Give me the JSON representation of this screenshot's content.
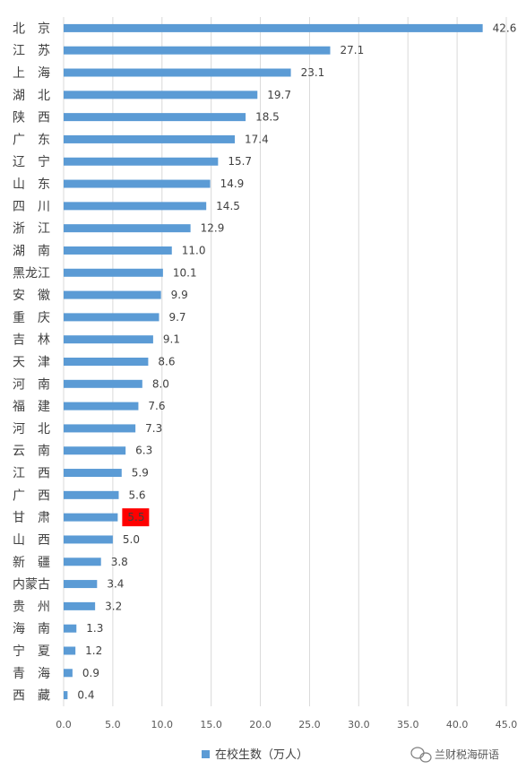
{
  "chart_data": {
    "type": "bar",
    "orientation": "horizontal",
    "categories": [
      "北　京",
      "江　苏",
      "上　海",
      "湖　北",
      "陕　西",
      "广　东",
      "辽　宁",
      "山　东",
      "四　川",
      "浙　江",
      "湖　南",
      "黑龙江",
      "安　徽",
      "重　庆",
      "吉　林",
      "天　津",
      "河　南",
      "福　建",
      "河　北",
      "云　南",
      "江　西",
      "广　西",
      "甘　肃",
      "山　西",
      "新　疆",
      "内蒙古",
      "贵　州",
      "海　南",
      "宁　夏",
      "青　海",
      "西　藏"
    ],
    "value_labels": [
      "42.6",
      "27.1",
      "23.1",
      "19.7",
      "18.5",
      "17.4",
      "15.7",
      "14.9",
      "14.5",
      "12.9",
      "11.0",
      "10.1",
      "9.9",
      "9.7",
      "9.1",
      "8.6",
      "8.0",
      "7.6",
      "7.3",
      "6.3",
      "5.9",
      "5.6",
      "5.5",
      "5.0",
      "3.8",
      "3.4",
      "3.2",
      "1.3",
      "1.2",
      "0.9",
      "0.4"
    ],
    "series": [
      {
        "name": "在校生数（万人）",
        "values": [
          42.6,
          27.1,
          23.1,
          19.7,
          18.5,
          17.4,
          15.7,
          14.9,
          14.5,
          12.9,
          11.0,
          10.1,
          9.9,
          9.7,
          9.1,
          8.6,
          8.0,
          7.6,
          7.3,
          6.3,
          5.9,
          5.6,
          5.5,
          5.0,
          3.8,
          3.4,
          3.2,
          1.3,
          1.2,
          0.9,
          0.4
        ]
      }
    ],
    "xlim": [
      0,
      45
    ],
    "xticks": [
      "0.0",
      "5.0",
      "10.0",
      "15.0",
      "20.0",
      "25.0",
      "30.0",
      "35.0",
      "40.0",
      "45.0"
    ],
    "grid": true,
    "legend_position": "bottom",
    "bar_color": "#5B9BD5",
    "highlight": {
      "category": "甘　肃",
      "color": "#FF0000"
    }
  },
  "watermark": {
    "text": "兰财税海研语"
  }
}
